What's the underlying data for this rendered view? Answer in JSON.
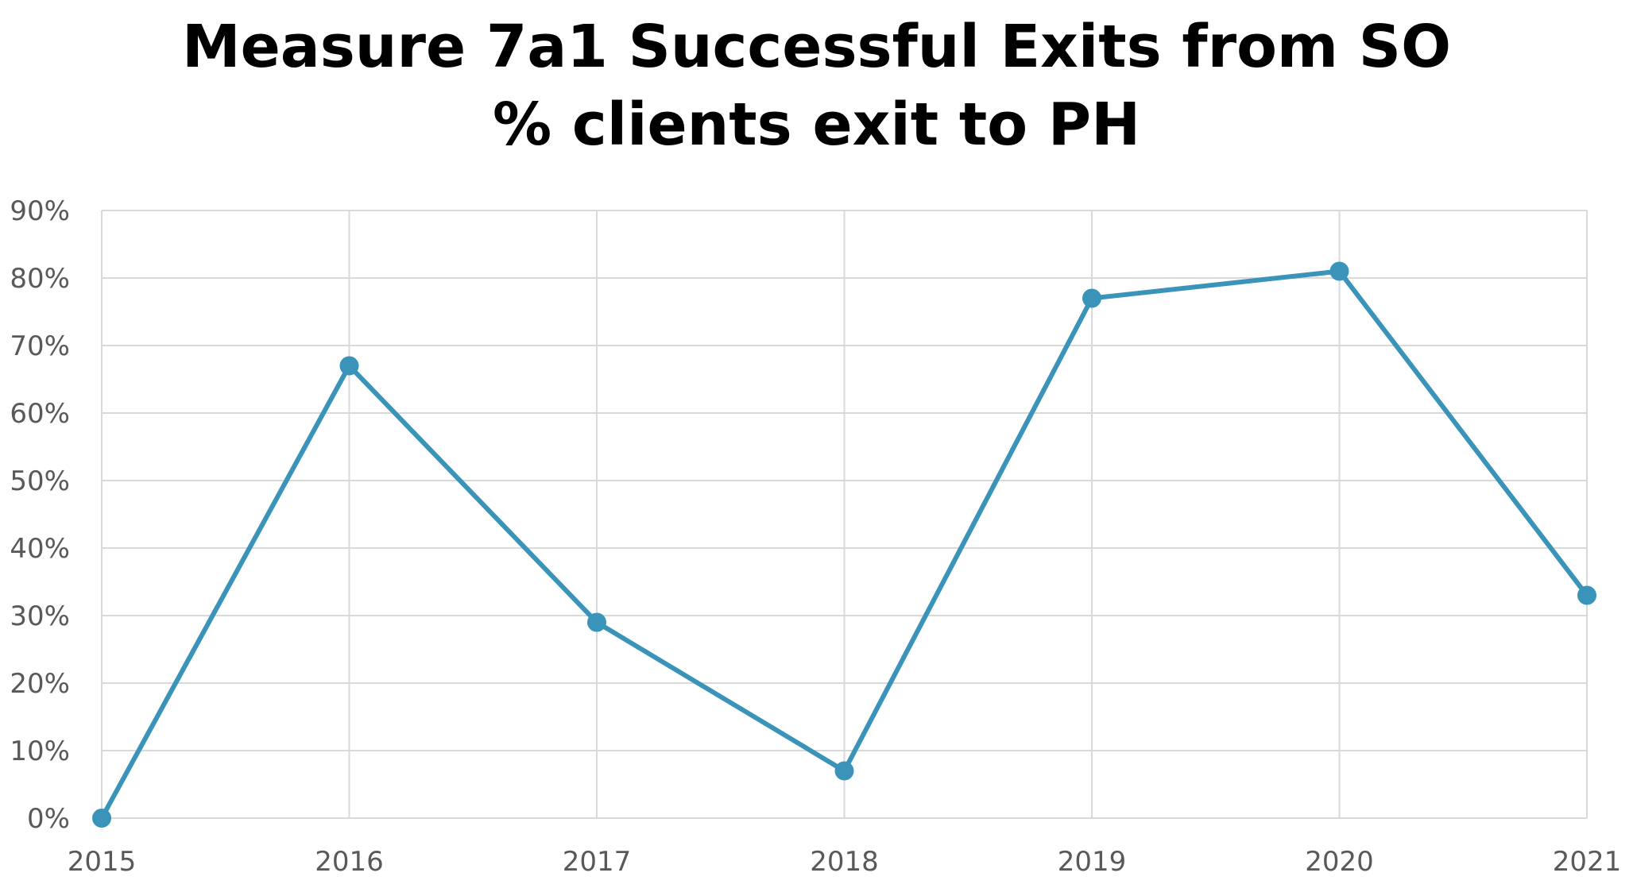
{
  "chart_data": {
    "type": "line",
    "title": [
      "Measure 7a1 Successful Exits from SO",
      "% clients exit to PH"
    ],
    "xlabel": "",
    "ylabel": "",
    "categories": [
      "2015",
      "2016",
      "2017",
      "2018",
      "2019",
      "2020",
      "2021"
    ],
    "series": [
      {
        "values": [
          0,
          67,
          29,
          7,
          77,
          81,
          33
        ],
        "color": "#3a93b8"
      }
    ],
    "ylim": [
      0,
      90
    ],
    "yticks": [
      0,
      10,
      20,
      30,
      40,
      50,
      60,
      70,
      80,
      90
    ],
    "ytick_labels": [
      "0%",
      "10%",
      "20%",
      "30%",
      "40%",
      "50%",
      "60%",
      "70%",
      "80%",
      "90%"
    ],
    "grid": true,
    "legend": "none",
    "colors": {
      "line": "#3a93b8",
      "grid": "#d9d9d9",
      "tick_text": "#595959",
      "title": "#000000"
    }
  }
}
